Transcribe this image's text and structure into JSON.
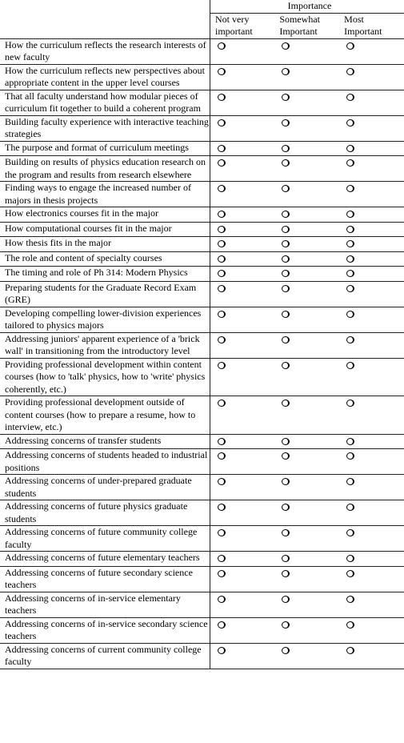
{
  "header": {
    "group": "Importance",
    "columns": [
      "Not very important",
      "Somewhat Important",
      "Most Important"
    ]
  },
  "rows": [
    "How the curriculum reflects the research interests of new faculty",
    "How the curriculum reflects new perspectives about appropriate content in the upper level courses",
    "That all faculty understand how modular pieces of curriculum fit together to build a coherent program",
    "Building faculty experience with interactive teaching strategies",
    "The purpose and format of curriculum meetings",
    "Building on results of physics education research on the program and results from research elsewhere",
    "Finding ways to engage the increased number of majors in thesis projects",
    "How electronics courses fit in the major",
    "How computational courses fit in the major",
    "How thesis fits in the major",
    "The role and content of specialty courses",
    "The timing and role of Ph 314: Modern Physics",
    "Preparing students for the Graduate Record Exam (GRE)",
    "Developing compelling lower-division experiences tailored to physics majors",
    "Addressing juniors' apparent experience of a 'brick wall' in transitioning from the introductory level",
    "Providing professional development within content courses (how to 'talk' physics, how to 'write' physics coherently, etc.)",
    "Providing professional development outside of content courses (how to prepare a resume, how to interview, etc.)",
    "Addressing concerns of transfer students",
    "Addressing concerns of students headed to industrial positions",
    "Addressing concerns of under-prepared graduate students",
    "Addressing concerns of future physics graduate students",
    "Addressing concerns of future community college faculty",
    "Addressing concerns of future elementary teachers",
    "Addressing concerns of future secondary science teachers",
    "Addressing concerns of in-service elementary teachers",
    "Addressing concerns of in-service secondary science teachers",
    "Addressing concerns of current community college faculty"
  ]
}
